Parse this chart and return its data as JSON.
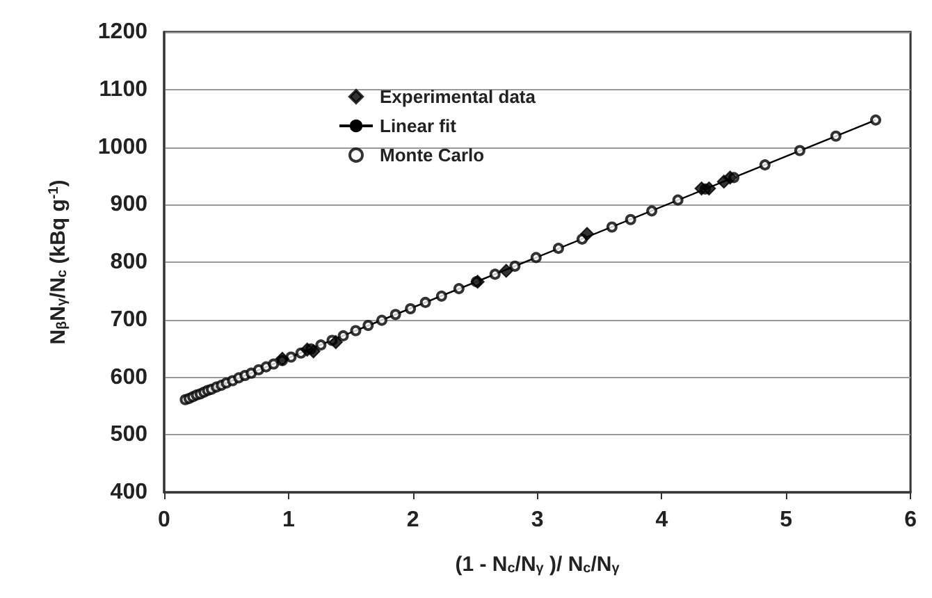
{
  "chart_data": {
    "type": "scatter",
    "xlabel": "(1 - N$_{c}$/N$_{γ}$ )/ N$_{c}$/N$_{γ}$",
    "ylabel": "N$_{β}$N$_{γ}$/N$_{c}$ (kBq g$^{-1}$)",
    "xlim": [
      0,
      6
    ],
    "xticks": [
      0,
      1,
      2,
      3,
      4,
      5,
      6
    ],
    "ylim": [
      400,
      1200
    ],
    "yticks": [
      400,
      500,
      600,
      700,
      800,
      900,
      1000,
      1100,
      1200
    ],
    "grid": "y",
    "legend": "top left",
    "series": [
      {
        "name": "Experimental data",
        "type": "scatter",
        "marker": "diamond",
        "color": "#000000",
        "x": [
          0.95,
          1.15,
          1.2,
          1.38,
          2.52,
          2.75,
          3.4,
          4.32,
          4.38,
          4.5,
          4.55
        ],
        "values": [
          632,
          648,
          645,
          661,
          766,
          785,
          849,
          928,
          928,
          940,
          947
        ]
      },
      {
        "name": "Linear fit",
        "type": "line",
        "marker": "none",
        "color": "#000000",
        "x": [
          0.17,
          5.72
        ],
        "values": [
          561,
          1047
        ]
      },
      {
        "name": "Monte Carlo",
        "type": "scatter",
        "marker": "circle",
        "color": "#000000",
        "x": [
          0.17,
          0.2,
          0.23,
          0.26,
          0.29,
          0.32,
          0.35,
          0.38,
          0.42,
          0.46,
          0.5,
          0.55,
          0.6,
          0.65,
          0.7,
          0.76,
          0.82,
          0.88,
          0.95,
          1.02,
          1.1,
          1.18,
          1.26,
          1.35,
          1.44,
          1.54,
          1.64,
          1.75,
          1.86,
          1.98,
          2.1,
          2.23,
          2.37,
          2.51,
          2.66,
          2.82,
          2.99,
          3.17,
          3.36,
          3.6,
          3.75,
          3.92,
          4.13,
          4.35,
          4.58,
          4.83,
          5.11,
          5.4,
          5.72
        ],
        "values": [
          561,
          563,
          566,
          569,
          571,
          574,
          577,
          579,
          583,
          586,
          590,
          594,
          599,
          603,
          607,
          613,
          618,
          623,
          629,
          635,
          642,
          649,
          656,
          664,
          672,
          681,
          690,
          699,
          709,
          719,
          730,
          741,
          754,
          766,
          779,
          793,
          808,
          824,
          840,
          861,
          874,
          889,
          908,
          927,
          947,
          969,
          994,
          1019,
          1047
        ]
      }
    ]
  }
}
